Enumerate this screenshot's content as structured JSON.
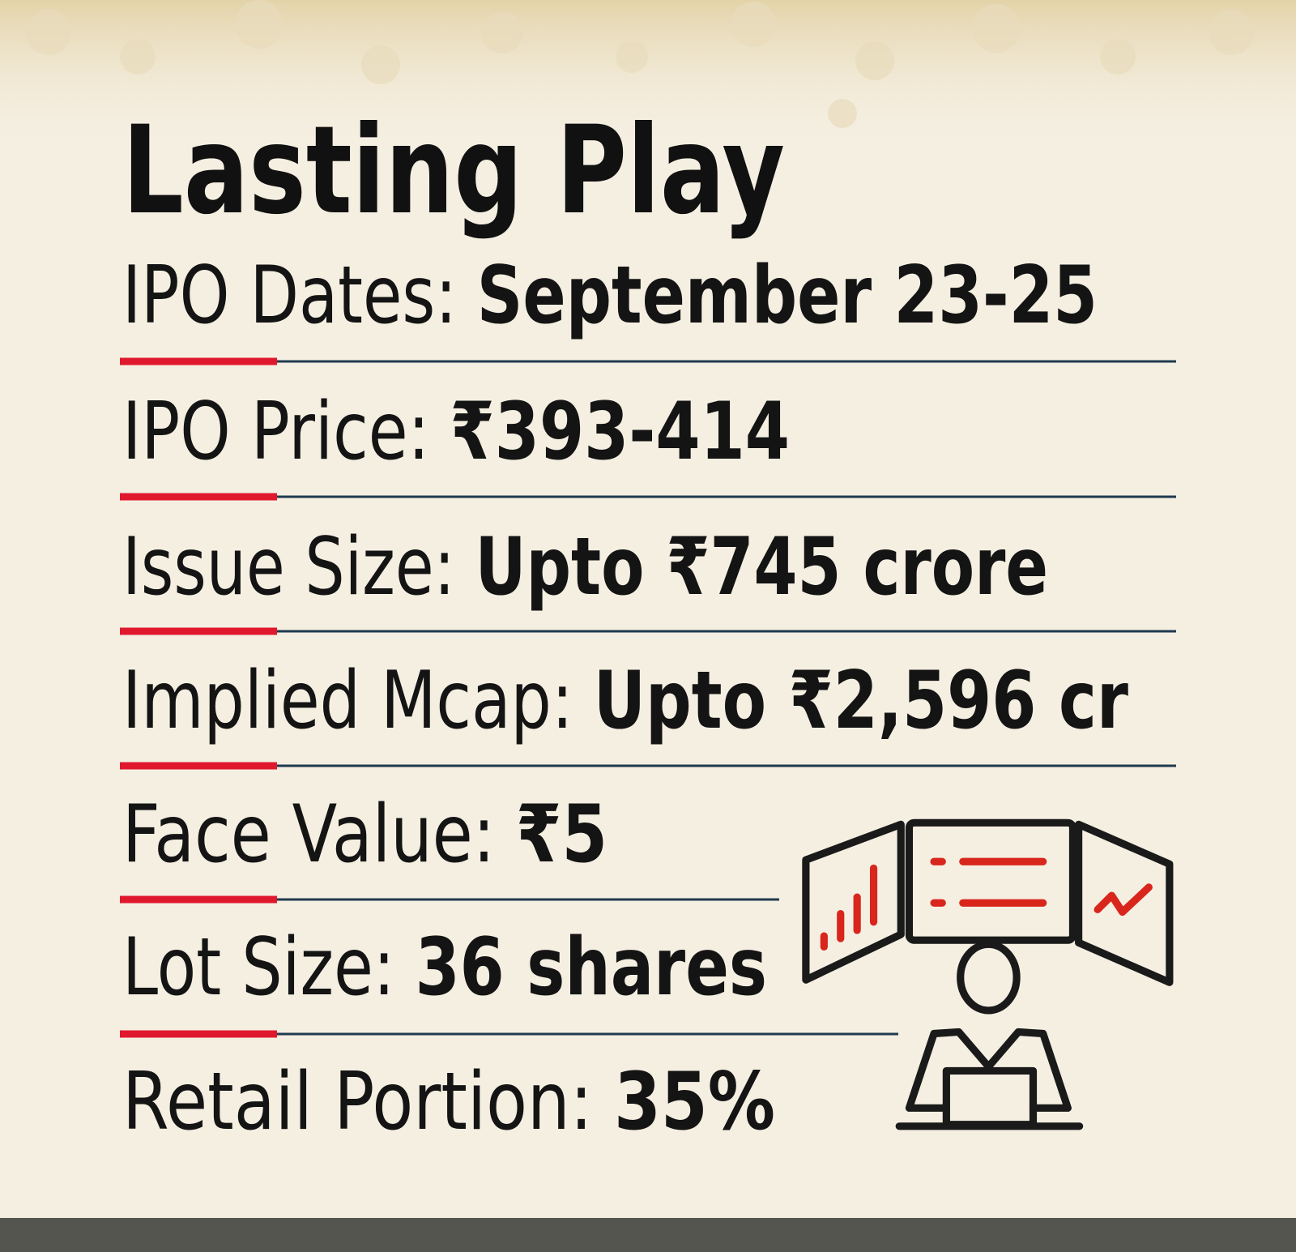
{
  "title": "Lasting Play",
  "items": [
    {
      "label": "IPO Dates:",
      "value": "September 23-25"
    },
    {
      "label": "IPO Price:",
      "value": "₹393-414"
    },
    {
      "label": "Issue Size:",
      "value": "Upto ₹745 crore"
    },
    {
      "label": "Implied Mcap:",
      "value": "Upto ₹2,596 cr"
    },
    {
      "label": "Face Value:",
      "value": "₹5"
    },
    {
      "label": "Lot Size:",
      "value": "36 shares"
    },
    {
      "label": "Retail Portion:",
      "value": "35%"
    }
  ]
}
